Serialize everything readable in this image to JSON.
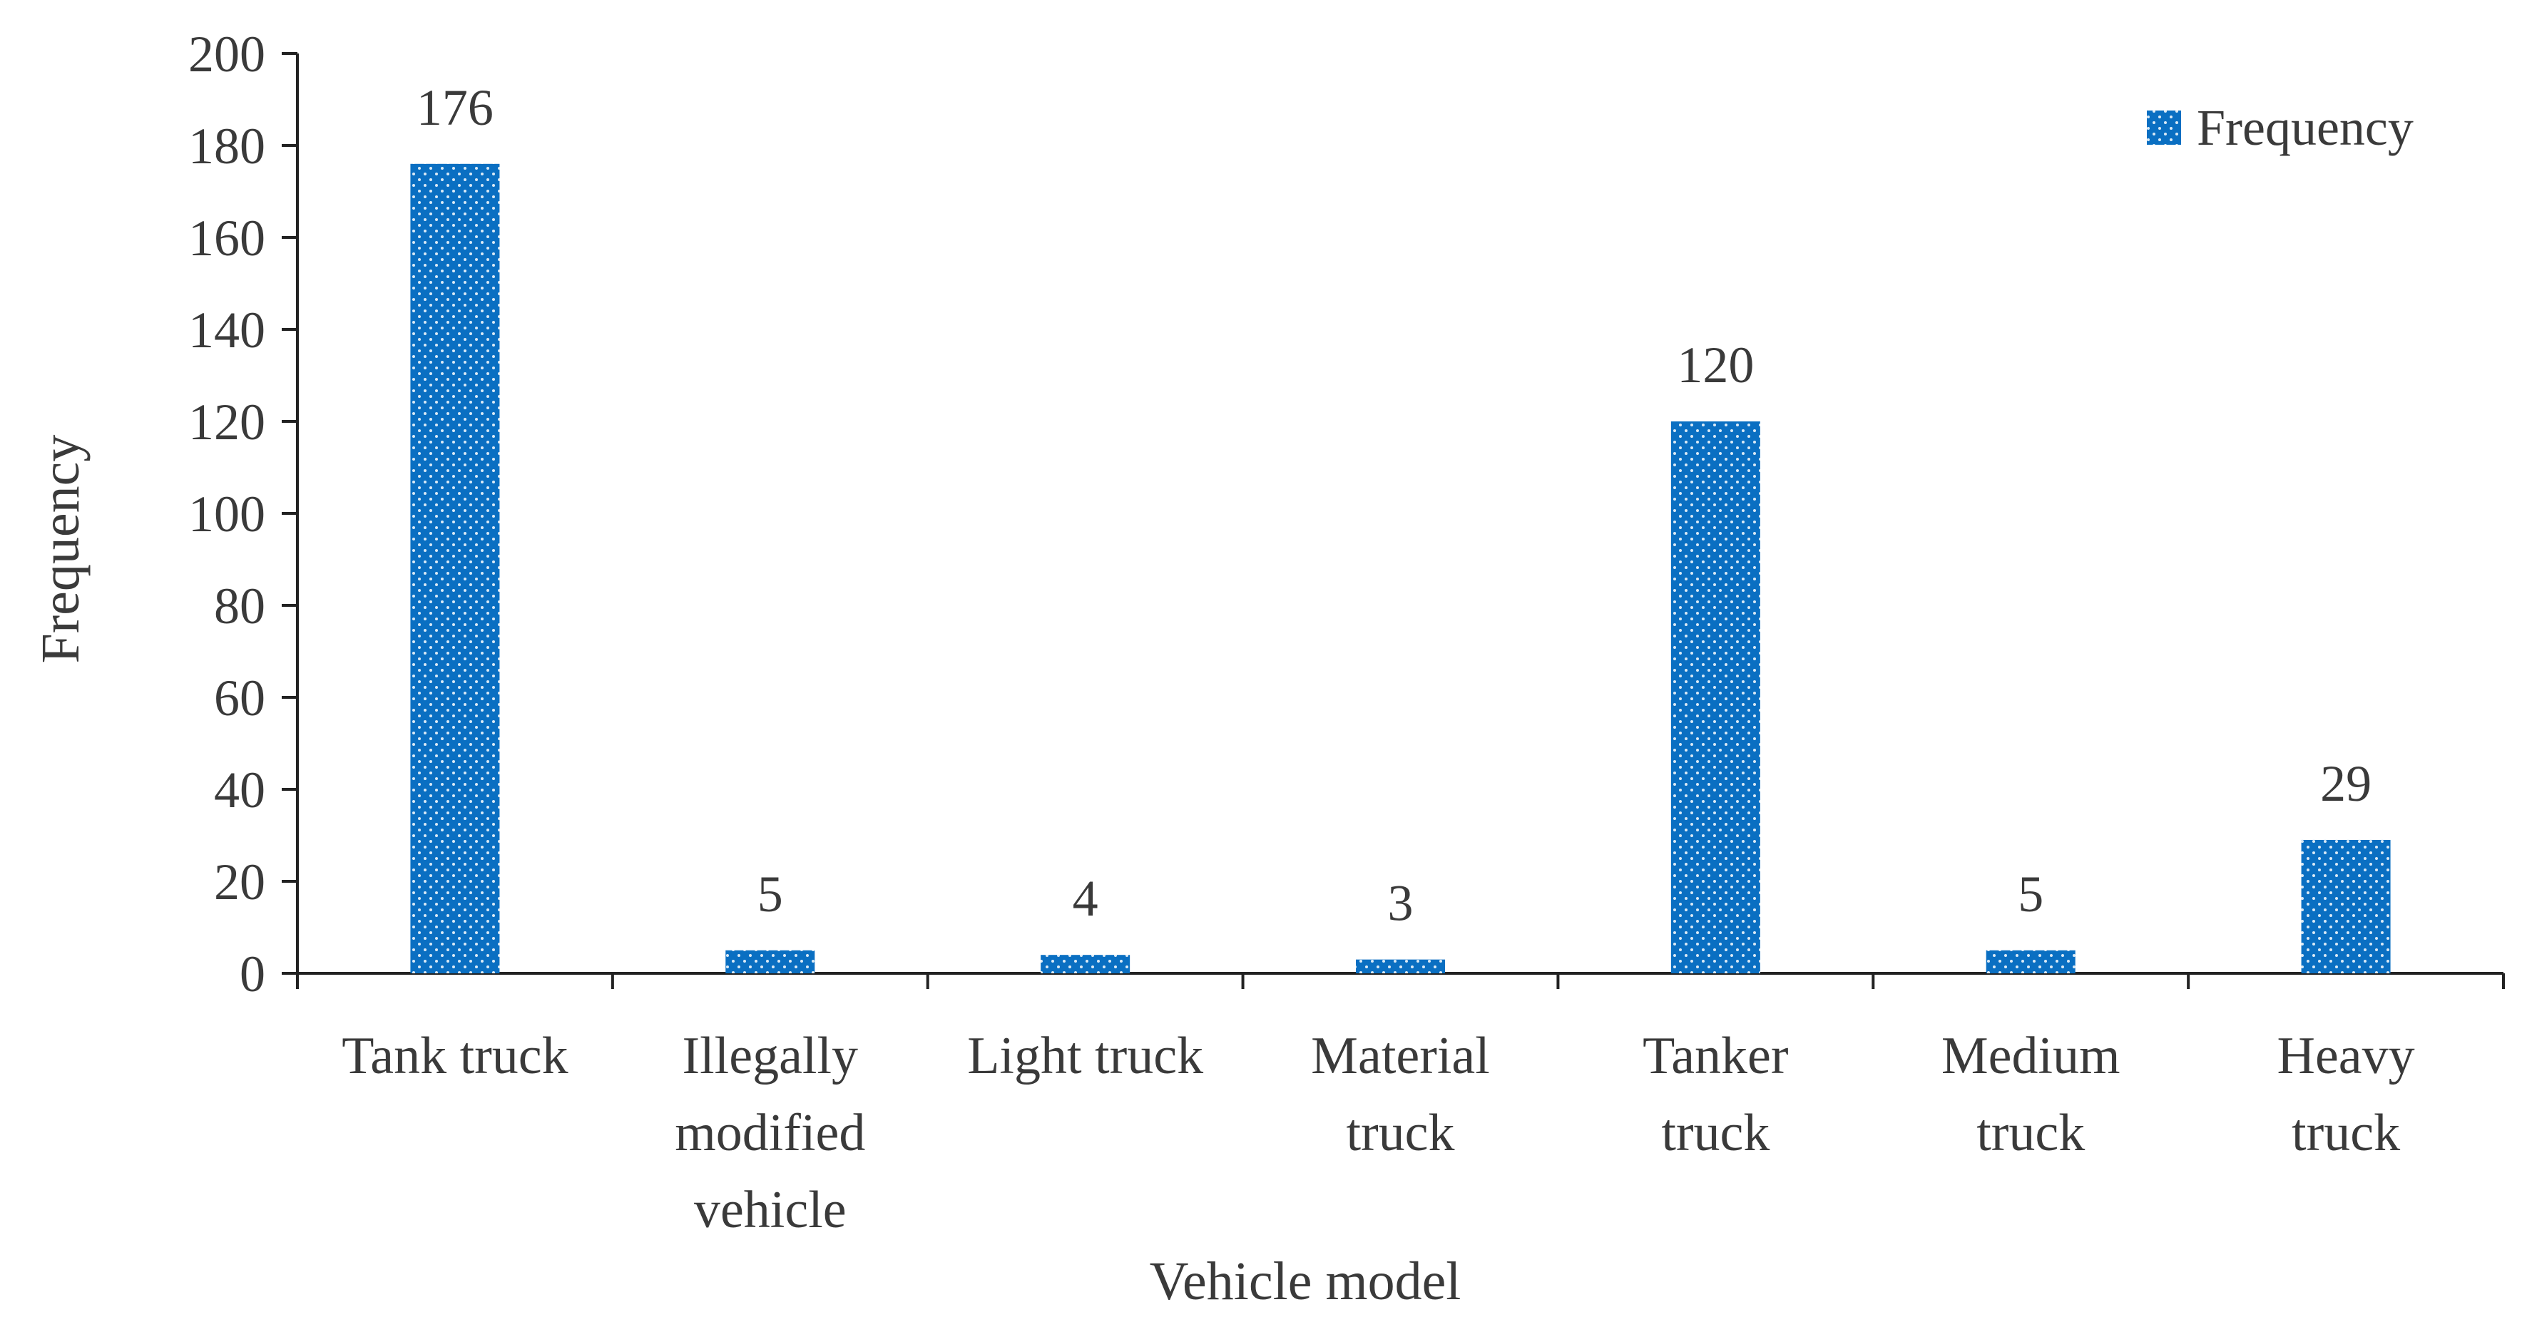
{
  "chart_data": {
    "type": "bar",
    "categories": [
      [
        "Tank truck"
      ],
      [
        "Illegally",
        "modified",
        "vehicle"
      ],
      [
        "Light truck"
      ],
      [
        "Material",
        "truck"
      ],
      [
        "Tanker",
        "truck"
      ],
      [
        "Medium",
        "truck"
      ],
      [
        "Heavy",
        "truck"
      ]
    ],
    "series": [
      {
        "name": "Frequency",
        "values": [
          176,
          5,
          4,
          3,
          120,
          5,
          29
        ],
        "color": "#0a6fc2"
      }
    ],
    "data_labels": [
      "176",
      "5",
      "4",
      "3",
      "120",
      "5",
      "29"
    ],
    "xlabel": "Vehicle model",
    "ylabel": "Frequency",
    "ylim": [
      0,
      200
    ],
    "yticks": [
      0,
      20,
      40,
      60,
      80,
      100,
      120,
      140,
      160,
      180,
      200
    ],
    "grid": false,
    "legend": {
      "position": "top-right",
      "entries": [
        "Frequency"
      ]
    },
    "bar_pattern": "dotted"
  }
}
